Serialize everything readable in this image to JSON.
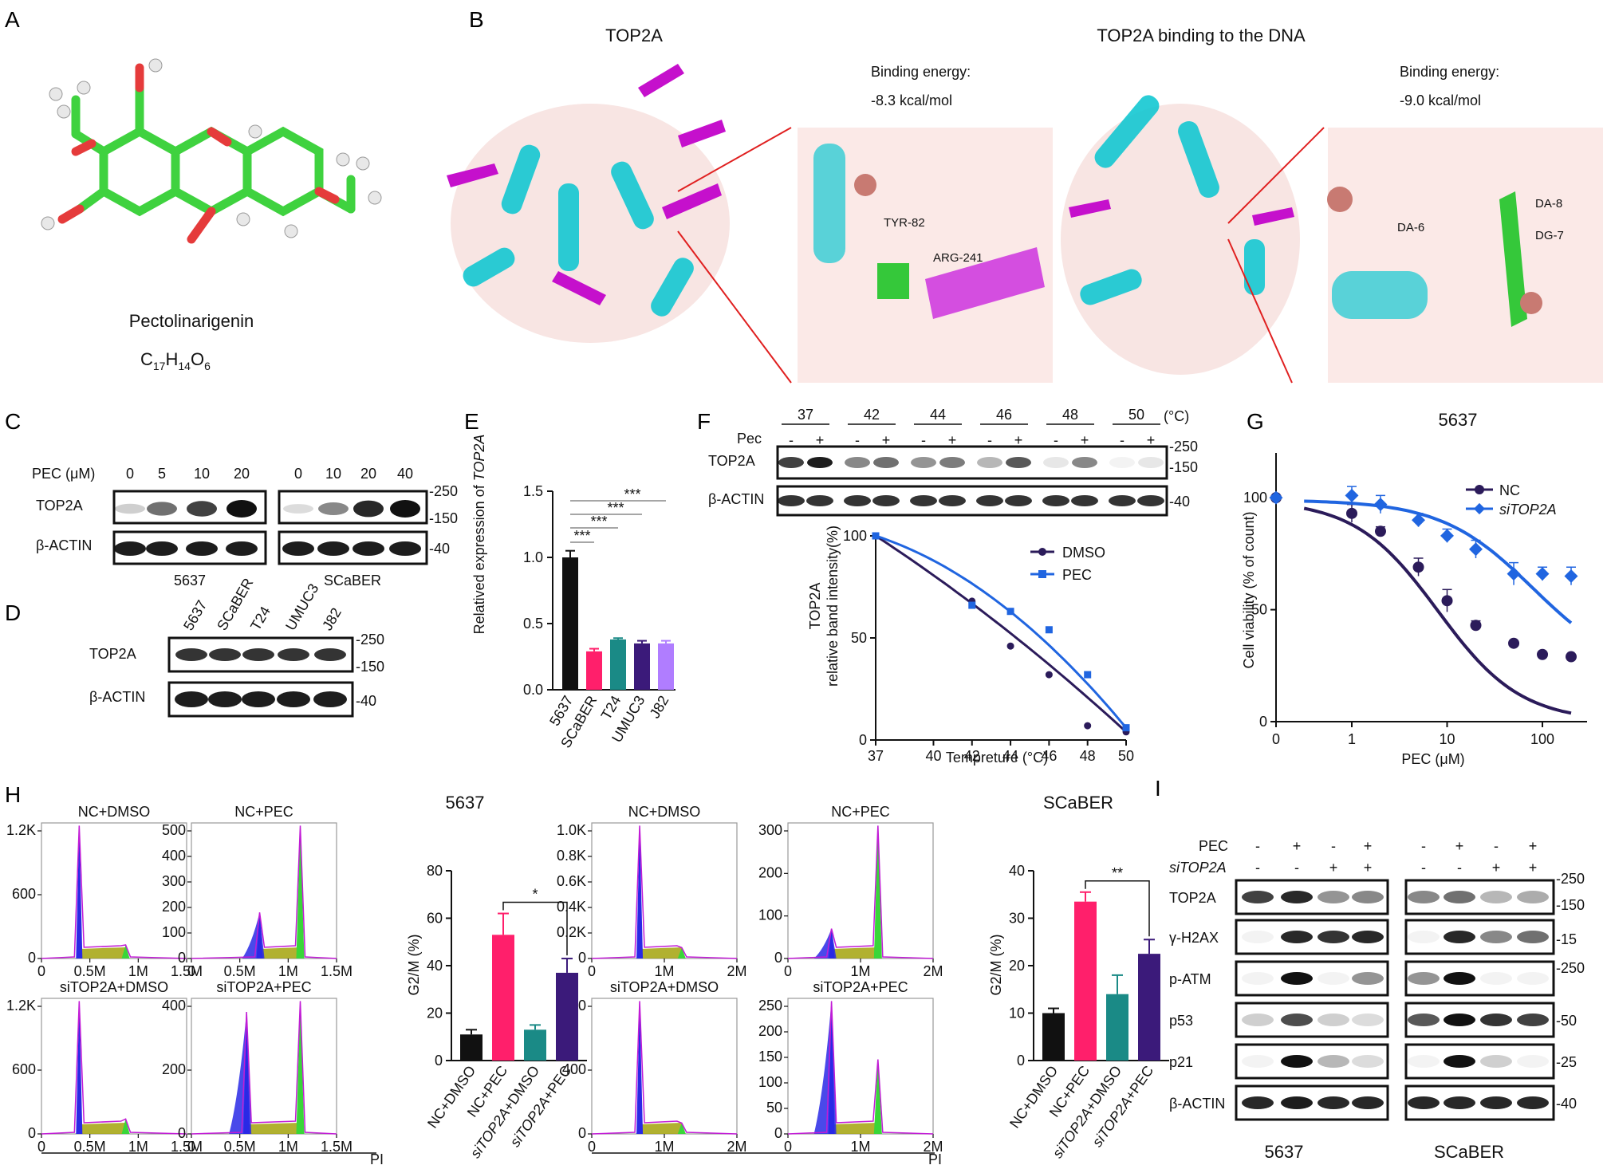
{
  "A": {
    "label": "A",
    "compound": "Pectolinarigenin",
    "formula": {
      "c": "C",
      "c_sub": "17",
      "h": "H",
      "h_sub": "14",
      "o": "O",
      "o_sub": "6"
    }
  },
  "B": {
    "label": "B",
    "title_left": "TOP2A",
    "title_right": "TOP2A binding to the DNA",
    "energy_label": "Binding energy:",
    "energy_left": "-8.3 kcal/mol",
    "energy_right": "-9.0 kcal/mol",
    "residues_left": [
      "TYR-82",
      "ARG-241"
    ],
    "residues_right": [
      "DA-8",
      "DA-6",
      "DG-7"
    ]
  },
  "C": {
    "label": "C",
    "conc_label": "PEC (μM)",
    "conc_5637": [
      "0",
      "5",
      "10",
      "20"
    ],
    "conc_scaber": [
      "0",
      "10",
      "20",
      "40"
    ],
    "rows": [
      "TOP2A",
      "β-ACTIN"
    ],
    "cell_lines": [
      "5637",
      "SCaBER"
    ],
    "markers": [
      "-250",
      "-150",
      "-40"
    ]
  },
  "D": {
    "label": "D",
    "lanes": [
      "5637",
      "SCaBER",
      "T24",
      "UMUC3",
      "J82"
    ],
    "rows": [
      "TOP2A",
      "β-ACTIN"
    ],
    "markers": [
      "-250",
      "-150",
      "-40"
    ]
  },
  "E": {
    "label": "E",
    "ylabel_prefix": "Relatived expression of ",
    "ylabel_gene": "TOP2A",
    "sig": [
      "***",
      "***",
      "***",
      "***"
    ]
  },
  "F": {
    "label": "F",
    "pec_label": "Pec",
    "temps": [
      "37",
      "42",
      "44",
      "46",
      "48",
      "50"
    ],
    "unit": "(°C)",
    "signs": [
      "-",
      "+"
    ],
    "rows": [
      "TOP2A",
      "β-ACTIN"
    ],
    "markers": [
      "-250",
      "-150",
      "-40"
    ],
    "ylabel1": "TOP2A",
    "ylabel2": "relative band intensity(%)",
    "xlabel": "Tempreture (°C)",
    "legend": [
      "DMSO",
      "PEC"
    ]
  },
  "G": {
    "label": "G",
    "title": "5637",
    "ylabel": "Cell viability (% of count)",
    "xlabel": "PEC (μM)",
    "legend": [
      "NC",
      "siTOP2A"
    ]
  },
  "H": {
    "label": "H",
    "hist_titles_5637": [
      "NC+DMSO",
      "NC+PEC",
      "siTOP2A+DMSO",
      "siTOP2A+PEC"
    ],
    "hist_titles_scaber": [
      "NC+DMSO",
      "NC+PEC",
      "siTOP2A+DMSO",
      "siTOP2A+PEC"
    ],
    "xaxis_label": "PI",
    "bar_title_5637": "5637",
    "bar_title_scaber": "SCaBER",
    "bar_ylabel": "G2/M (%)",
    "bar_categories": [
      "NC+DMSO",
      "NC+PEC",
      "siTOP2A+DMSO",
      "siTOP2A+PEC"
    ],
    "sig_5637": "*",
    "sig_scaber": "**"
  },
  "I": {
    "label": "I",
    "treat_rows": [
      "PEC",
      "siTOP2A"
    ],
    "pec_signs": [
      "-",
      "+",
      "-",
      "+"
    ],
    "si_signs": [
      "-",
      "-",
      "+",
      "+"
    ],
    "rows": [
      "TOP2A",
      "γ-H2AX",
      "p-ATM",
      "p53",
      "p21",
      "β-ACTIN"
    ],
    "markers": [
      "-250",
      "-150",
      "-15",
      "-250",
      "-50",
      "-25",
      "-40"
    ],
    "cell_lines": [
      "5637",
      "SCaBER"
    ]
  },
  "colors": {
    "black": "#111111",
    "pink": "#ff1f6b",
    "teal": "#1a8a86",
    "indigo": "#3b1a7a",
    "lavender": "#b07dff",
    "dmso": "#2b1b5a",
    "pec": "#2065e0",
    "cyan": "#1fc8d0",
    "magenta": "#c21bd6",
    "green": "#39d639",
    "olive": "#a9a81a",
    "blue": "#2929e6"
  },
  "chart_data": [
    {
      "panel": "E",
      "type": "bar",
      "categories": [
        "5637",
        "SCaBER",
        "T24",
        "UMUC3",
        "J82"
      ],
      "values": [
        1.0,
        0.29,
        0.38,
        0.35,
        0.35
      ],
      "errors": [
        0.05,
        0.02,
        0.01,
        0.02,
        0.02
      ],
      "ylabel": "Relatived expression of TOP2A",
      "ylim": [
        0,
        1.5
      ],
      "yticks": [
        "0.0",
        "0.5",
        "1.0",
        "1.5"
      ]
    },
    {
      "panel": "F",
      "type": "line",
      "x": [
        37,
        42,
        44,
        46,
        48,
        50
      ],
      "series": [
        {
          "name": "DMSO",
          "values": [
            100,
            68,
            46,
            32,
            7,
            4
          ]
        },
        {
          "name": "PEC",
          "values": [
            100,
            66,
            63,
            54,
            32,
            6
          ]
        }
      ],
      "xlabel": "Tempreture (°C)",
      "ylabel": "TOP2A relative band intensity(%)",
      "xlim": [
        37,
        50
      ],
      "ylim": [
        0,
        100
      ],
      "xticks": [
        "37",
        "40",
        "42",
        "44",
        "46",
        "48",
        "50"
      ],
      "yticks": [
        "0",
        "50",
        "100"
      ]
    },
    {
      "panel": "G",
      "type": "scatter",
      "x": [
        0,
        1,
        2,
        5,
        10,
        20,
        50,
        100,
        200
      ],
      "series": [
        {
          "name": "NC",
          "values": [
            100,
            93,
            85,
            69,
            54,
            43,
            35,
            30,
            29
          ],
          "errors": [
            1,
            4,
            2,
            4,
            5,
            2,
            1,
            1,
            1
          ]
        },
        {
          "name": "siTOP2A",
          "values": [
            100,
            101,
            97,
            90,
            83,
            77,
            66,
            66,
            65
          ],
          "errors": [
            1,
            4,
            4,
            3,
            3,
            4,
            5,
            3,
            4
          ]
        }
      ],
      "title": "5637",
      "xlabel": "PEC (μM)",
      "ylabel": "Cell viability (% of count)",
      "ylim": [
        0,
        120
      ],
      "xticks": [
        "0",
        "1",
        "10",
        "100"
      ],
      "yticks": [
        "0",
        "50",
        "100"
      ]
    },
    {
      "panel": "H-5637",
      "type": "bar",
      "categories": [
        "NC+DMSO",
        "NC+PEC",
        "siTOP2A+DMSO",
        "siTOP2A+PEC"
      ],
      "values": [
        11,
        53,
        13,
        37
      ],
      "errors": [
        2,
        9,
        2,
        6
      ],
      "title": "5637",
      "ylabel": "G2/M (%)",
      "ylim": [
        0,
        80
      ],
      "yticks": [
        "0",
        "20",
        "40",
        "60",
        "80"
      ]
    },
    {
      "panel": "H-SCaBER",
      "type": "bar",
      "categories": [
        "NC+DMSO",
        "NC+PEC",
        "siTOP2A+DMSO",
        "siTOP2A+PEC"
      ],
      "values": [
        10,
        33.5,
        14,
        22.5
      ],
      "errors": [
        1,
        2,
        4,
        3
      ],
      "title": "SCaBER",
      "ylabel": "G2/M (%)",
      "ylim": [
        0,
        40
      ],
      "yticks": [
        "0",
        "10",
        "20",
        "30",
        "40"
      ]
    }
  ]
}
